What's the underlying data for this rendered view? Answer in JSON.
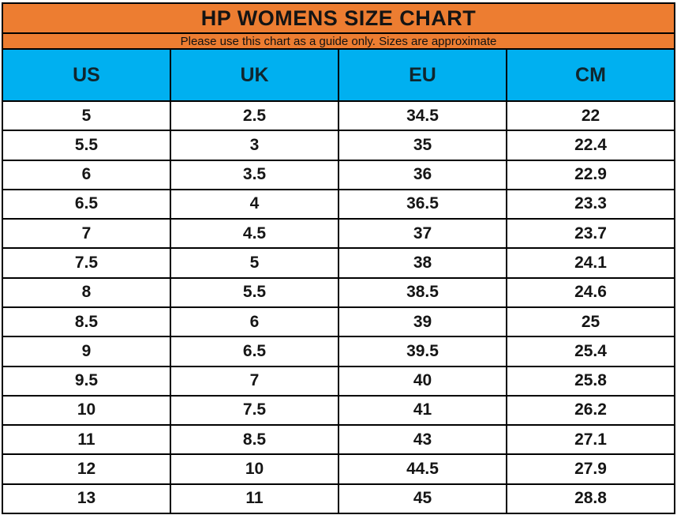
{
  "title": "HP WOMENS SIZE CHART",
  "subtitle": "Please use this chart as a guide only. Sizes are approximate",
  "colors": {
    "band_orange": "#ED7D31",
    "header_blue": "#00B0F0",
    "border_black": "#000000",
    "row_white": "#FFFFFF"
  },
  "chart_data": {
    "type": "table",
    "title": "HP WOMENS SIZE CHART",
    "subtitle": "Please use this chart as a guide only. Sizes are approximate",
    "columns": [
      "US",
      "UK",
      "EU",
      "CM"
    ],
    "rows": [
      [
        "5",
        "2.5",
        "34.5",
        "22"
      ],
      [
        "5.5",
        "3",
        "35",
        "22.4"
      ],
      [
        "6",
        "3.5",
        "36",
        "22.9"
      ],
      [
        "6.5",
        "4",
        "36.5",
        "23.3"
      ],
      [
        "7",
        "4.5",
        "37",
        "23.7"
      ],
      [
        "7.5",
        "5",
        "38",
        "24.1"
      ],
      [
        "8",
        "5.5",
        "38.5",
        "24.6"
      ],
      [
        "8.5",
        "6",
        "39",
        "25"
      ],
      [
        "9",
        "6.5",
        "39.5",
        "25.4"
      ],
      [
        "9.5",
        "7",
        "40",
        "25.8"
      ],
      [
        "10",
        "7.5",
        "41",
        "26.2"
      ],
      [
        "11",
        "8.5",
        "43",
        "27.1"
      ],
      [
        "12",
        "10",
        "44.5",
        "27.9"
      ],
      [
        "13",
        "11",
        "45",
        "28.8"
      ]
    ]
  }
}
